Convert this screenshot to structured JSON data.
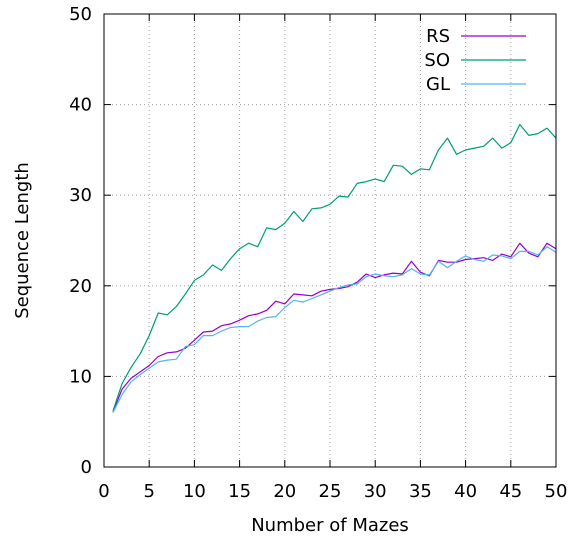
{
  "chart_data": {
    "type": "line",
    "title": "",
    "xlabel": "Number of Mazes",
    "ylabel": "Sequence Length",
    "xlim": [
      0,
      50
    ],
    "ylim": [
      0,
      50
    ],
    "xticks": [
      0,
      5,
      10,
      15,
      20,
      25,
      30,
      35,
      40,
      45,
      50
    ],
    "yticks": [
      0,
      10,
      20,
      30,
      40,
      50
    ],
    "grid": true,
    "legend_position": "top-right",
    "x": [
      1,
      2,
      3,
      4,
      5,
      6,
      7,
      8,
      9,
      10,
      11,
      12,
      13,
      14,
      15,
      16,
      17,
      18,
      19,
      20,
      21,
      22,
      23,
      24,
      25,
      26,
      27,
      28,
      29,
      30,
      31,
      32,
      33,
      34,
      35,
      36,
      37,
      38,
      39,
      40,
      41,
      42,
      43,
      44,
      45,
      46,
      47,
      48,
      49,
      50
    ],
    "series": [
      {
        "name": "RS",
        "color": "#9400d3",
        "values": [
          6.1,
          8.6,
          9.8,
          10.5,
          11.2,
          12.2,
          12.6,
          12.7,
          13.1,
          14.0,
          14.9,
          15.0,
          15.6,
          15.8,
          16.2,
          16.7,
          16.9,
          17.3,
          18.3,
          18.0,
          19.1,
          19.0,
          18.9,
          19.4,
          19.6,
          19.7,
          19.9,
          20.4,
          21.3,
          20.9,
          21.2,
          21.4,
          21.3,
          22.7,
          21.5,
          21.1,
          22.8,
          22.6,
          22.6,
          22.9,
          23.0,
          23.1,
          22.8,
          23.5,
          23.2,
          24.7,
          23.6,
          23.2,
          24.7,
          24.1
        ]
      },
      {
        "name": "SO",
        "color": "#009e73",
        "values": [
          6.2,
          9.2,
          11.0,
          12.5,
          14.5,
          17.0,
          16.8,
          17.7,
          19.1,
          20.6,
          21.2,
          22.3,
          21.7,
          23.0,
          24.1,
          24.7,
          24.3,
          26.4,
          26.2,
          26.9,
          28.2,
          27.1,
          28.5,
          28.6,
          29.0,
          29.9,
          29.8,
          31.3,
          31.5,
          31.8,
          31.5,
          33.3,
          33.2,
          32.3,
          32.9,
          32.8,
          35.0,
          36.3,
          34.5,
          35.0,
          35.2,
          35.4,
          36.3,
          35.2,
          35.8,
          37.8,
          36.6,
          36.8,
          37.4,
          36.3
        ]
      },
      {
        "name": "GL",
        "color": "#56b4e9",
        "values": [
          6.0,
          8.0,
          9.4,
          10.2,
          10.9,
          11.6,
          11.8,
          11.9,
          13.3,
          13.5,
          14.5,
          14.5,
          15.0,
          15.4,
          15.5,
          15.5,
          16.1,
          16.5,
          16.6,
          17.6,
          18.4,
          18.2,
          18.6,
          19.0,
          19.4,
          19.8,
          20.1,
          20.2,
          21.0,
          21.3,
          21.1,
          21.0,
          21.2,
          21.9,
          21.3,
          21.2,
          22.7,
          22.0,
          22.7,
          23.3,
          22.9,
          22.7,
          23.4,
          23.3,
          23.0,
          23.8,
          23.8,
          23.4,
          24.3,
          23.7
        ]
      }
    ]
  }
}
